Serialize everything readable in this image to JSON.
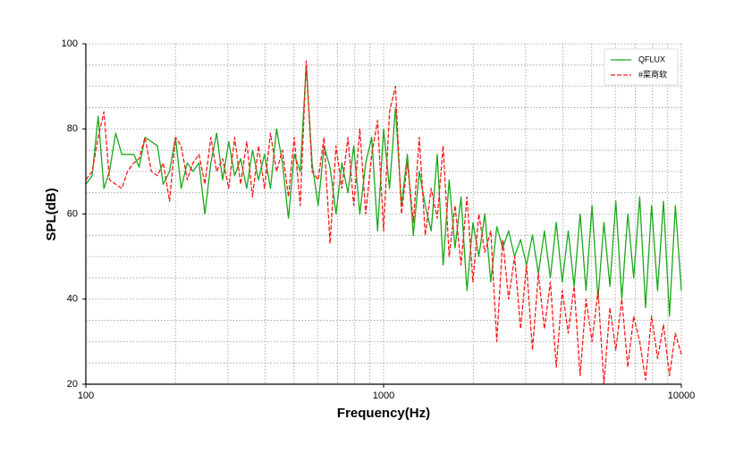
{
  "chart_data": {
    "type": "line",
    "x_label": "Frequency(Hz)",
    "y_label": "SPL(dB)",
    "xscale": "log",
    "xlim": [
      100,
      10000
    ],
    "xticks": [
      100,
      1000,
      10000
    ],
    "xminor_ticks": [
      200,
      300,
      400,
      500,
      600,
      700,
      800,
      900,
      2000,
      3000,
      4000,
      5000,
      6000,
      7000,
      8000,
      9000
    ],
    "ylim": [
      20,
      100
    ],
    "yticks": [
      20,
      40,
      60,
      80,
      100
    ],
    "yminor_ticks": [
      25,
      30,
      35,
      45,
      50,
      55,
      65,
      70,
      75,
      85,
      90,
      95
    ],
    "grid": true,
    "legend": "upper right",
    "x": [
      100,
      105,
      110,
      115,
      120,
      126,
      132,
      138,
      145,
      151,
      158,
      166,
      174,
      182,
      191,
      200,
      209,
      219,
      229,
      240,
      251,
      263,
      275,
      288,
      302,
      316,
      331,
      347,
      363,
      380,
      398,
      417,
      437,
      457,
      479,
      501,
      525,
      550,
      575,
      603,
      631,
      661,
      692,
      724,
      759,
      794,
      832,
      871,
      912,
      955,
      1000,
      1047,
      1096,
      1148,
      1202,
      1259,
      1318,
      1380,
      1445,
      1514,
      1585,
      1660,
      1738,
      1820,
      1905,
      1995,
      2089,
      2188,
      2291,
      2399,
      2512,
      2630,
      2754,
      2884,
      3020,
      3162,
      3311,
      3467,
      3631,
      3802,
      3981,
      4169,
      4365,
      4571,
      4786,
      5012,
      5248,
      5495,
      5754,
      6026,
      6310,
      6607,
      6918,
      7244,
      7586,
      7943,
      8318,
      8710,
      9120,
      9550,
      10000
    ],
    "series": [
      {
        "name": "QFLUX",
        "color": "#1aa81a",
        "dash": false,
        "values": [
          67,
          69,
          83,
          66,
          70,
          79,
          74,
          74,
          74,
          71,
          78,
          77,
          76,
          67,
          70,
          78,
          66,
          72,
          70,
          72,
          60,
          72,
          79,
          68,
          77,
          69,
          73,
          66,
          75,
          68,
          74,
          66,
          80,
          72,
          59,
          74,
          70,
          95,
          72,
          62,
          76,
          71,
          60,
          72,
          65,
          76,
          60,
          72,
          78,
          56,
          80,
          66,
          85,
          62,
          74,
          55,
          70,
          62,
          56,
          74,
          48,
          68,
          52,
          64,
          42,
          58,
          50,
          60,
          44,
          57,
          52,
          56,
          50,
          54,
          48,
          55,
          46,
          56,
          45,
          58,
          44,
          56,
          43,
          60,
          42,
          62,
          40,
          58,
          43,
          63,
          40,
          60,
          45,
          64,
          38,
          62,
          42,
          63,
          36,
          62,
          42
        ]
      },
      {
        "name": "#菜商软",
        "color": "#ff1a1a",
        "dash": true,
        "values": [
          68,
          70,
          78,
          84,
          68,
          67,
          66,
          70,
          72,
          73,
          78,
          70,
          69,
          72,
          63,
          78,
          76,
          68,
          72,
          74,
          67,
          78,
          70,
          73,
          66,
          78,
          67,
          77,
          64,
          76,
          66,
          79,
          70,
          75,
          64,
          78,
          62,
          96,
          70,
          68,
          78,
          53,
          76,
          66,
          78,
          62,
          80,
          60,
          74,
          82,
          56,
          84,
          90,
          60,
          72,
          58,
          78,
          55,
          66,
          59,
          76,
          50,
          62,
          48,
          64,
          44,
          60,
          51,
          56,
          30,
          54,
          40,
          50,
          33,
          48,
          28,
          46,
          33,
          44,
          24,
          42,
          32,
          43,
          22,
          40,
          30,
          42,
          20,
          38,
          28,
          40,
          24,
          36,
          30,
          21,
          36,
          26,
          34,
          22,
          32,
          27
        ]
      }
    ]
  }
}
